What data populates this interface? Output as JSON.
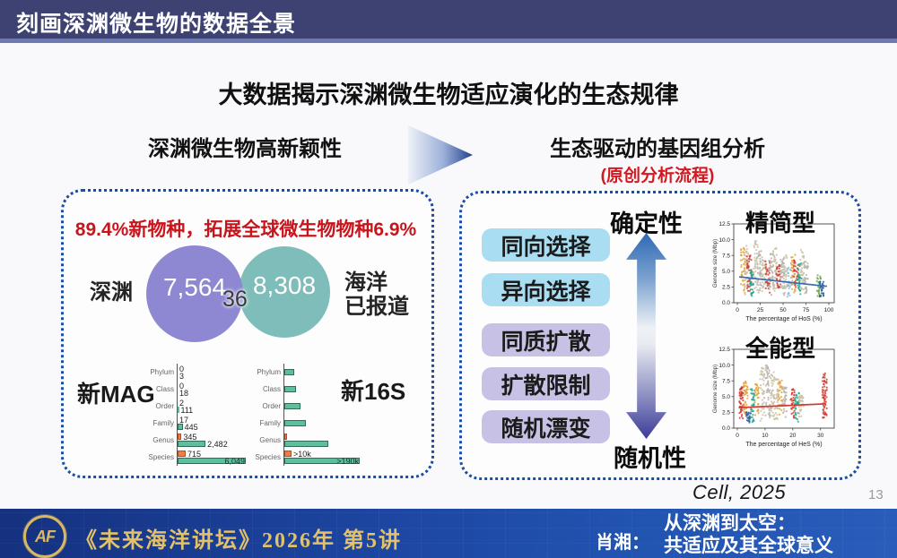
{
  "header": {
    "title": "刻画深渊微生物的数据全景"
  },
  "main_title": "大数据揭示深渊微生物适应演化的生态规律",
  "left_section": {
    "heading": "深渊微生物高新颖性",
    "highlight": "89.4%新物种，拓展全球微生物物种6.9%"
  },
  "right_section": {
    "heading": "生态驱动的基因组分析",
    "subheading": "(原创分析流程)",
    "determinism_label": "确定性",
    "stochasticity_label": "随机性",
    "selection_boxes": [
      "同向选择",
      "异向选择"
    ],
    "neutral_boxes": [
      "同质扩散",
      "扩散限制",
      "随机漂变"
    ]
  },
  "citation": "Cell, 2025",
  "page_number": "13",
  "footer": {
    "logo_text": "AF",
    "series": "《未来海洋讲坛》2026年 第5讲",
    "speaker": "肖湘：",
    "talk_title_line1": "从深渊到太空：",
    "talk_title_line2": "共适应及其全球意义"
  },
  "chart_data": {
    "venn": {
      "type": "venn",
      "left_label": "深渊",
      "left_value": "7,564",
      "overlap_value": "36",
      "right_value": "8,308",
      "right_label_line1": "海洋",
      "right_label_line2": "已报道",
      "left_color": "#8e88d2",
      "right_color": "#7fbdba"
    },
    "new_mag_bar": {
      "type": "bar",
      "title": "新MAG",
      "orientation": "horizontal",
      "max_value": 6049,
      "categories": [
        "Phylum",
        "Class",
        "Order",
        "Family",
        "Genus",
        "Species"
      ],
      "series": [
        {
          "name": "orange",
          "values": [
            0,
            0,
            2,
            17,
            345,
            715
          ],
          "labels": [
            "0",
            "0",
            "2",
            "17",
            "345",
            "715"
          ]
        },
        {
          "name": "green",
          "values": [
            3,
            18,
            111,
            445,
            2482,
            6049
          ],
          "labels": [
            "3",
            "18",
            "111",
            "445",
            "2,482",
            "6,049"
          ]
        }
      ]
    },
    "new_16s_bar": {
      "type": "bar",
      "title": "新16S",
      "orientation": "horizontal",
      "categories": [
        "Phylum",
        "Class",
        "Order",
        "Family",
        "Genus",
        "Species"
      ],
      "rows": [
        {
          "taxon": "Phylum",
          "bars": [
            {
              "color": "green",
              "frac": 0.13
            }
          ]
        },
        {
          "taxon": "Class",
          "bars": [
            {
              "color": "green",
              "frac": 0.155
            }
          ]
        },
        {
          "taxon": "Order",
          "bars": [
            {
              "color": "green",
              "frac": 0.215
            }
          ]
        },
        {
          "taxon": "Family",
          "bars": [
            {
              "color": "green",
              "frac": 0.285
            }
          ]
        },
        {
          "taxon": "Genus",
          "bars": [
            {
              "color": "orange",
              "frac": 0.03
            },
            {
              "color": "green",
              "frac": 0.58
            }
          ]
        },
        {
          "taxon": "Species",
          "bars": [
            {
              "color": "orange",
              "frac": 0.095,
              "label": ">10k"
            },
            {
              "color": "green",
              "frac": 1.0,
              "label": ">190k",
              "label_inside": true
            }
          ]
        }
      ]
    },
    "genome_scatter_top": {
      "type": "scatter",
      "title": "精简型",
      "xlabel": "The percentage of HoS (%)",
      "ylabel": "Genome size (Mbp)",
      "xticks": [
        0,
        25,
        50,
        75,
        100
      ],
      "yticks": [
        "0.0",
        "2.5",
        "5.0",
        "7.5",
        "10.0",
        "12.5"
      ],
      "xmax": 100,
      "ymax": 12.5,
      "trend": {
        "x0": 2,
        "y0": 4.1,
        "x1": 98,
        "y1": 2.6,
        "color": "#3a6db0"
      },
      "clusters": [
        [
          6,
          "#e2a23b",
          1.5,
          8.7,
          40
        ],
        [
          10,
          "#c9bfa4",
          1.2,
          9.3,
          40
        ],
        [
          13,
          "#d23b2f",
          1.8,
          7.6,
          36
        ],
        [
          16,
          "#1fa587",
          0.9,
          5.2,
          30
        ],
        [
          20,
          "#c9bfa4",
          1.5,
          9.8,
          40
        ],
        [
          24,
          "#b5b1aa",
          1.2,
          8.2,
          38
        ],
        [
          29,
          "#c9bfa4",
          1.5,
          7.3,
          34
        ],
        [
          33,
          "#d23b2f",
          1.4,
          6.6,
          30
        ],
        [
          37,
          "#b5b1aa",
          1.0,
          7.8,
          40
        ],
        [
          41,
          "#c9bfa4",
          1.6,
          8.8,
          36
        ],
        [
          45,
          "#d23b2f",
          1.9,
          6.2,
          30
        ],
        [
          49,
          "#b5b1aa",
          1.2,
          7.0,
          36
        ],
        [
          53,
          "#c9bfa4",
          1.5,
          7.6,
          34
        ],
        [
          57,
          "#86b9dd",
          0.7,
          5.6,
          26
        ],
        [
          61,
          "#e2a23b",
          1.6,
          7.8,
          32
        ],
        [
          64,
          "#d23b2f",
          2.0,
          6.8,
          28
        ],
        [
          68,
          "#1fa587",
          1.0,
          6.4,
          30
        ],
        [
          71,
          "#c9bfa4",
          1.8,
          8.4,
          34
        ],
        [
          75,
          "#b5b1aa",
          1.3,
          7.0,
          32
        ],
        [
          89,
          "#69a744",
          1.0,
          4.6,
          24
        ],
        [
          92,
          "#2a5d9c",
          0.6,
          3.4,
          26
        ]
      ]
    },
    "genome_scatter_bottom": {
      "type": "scatter",
      "title": "全能型",
      "xlabel": "The percentage of HeS (%)",
      "ylabel": "Genome size (Mbp)",
      "xticks": [
        0,
        10,
        20,
        30
      ],
      "yticks": [
        "0.0",
        "2.5",
        "5.0",
        "7.5",
        "10.0",
        "12.5"
      ],
      "xmax": 33,
      "ymax": 12.5,
      "trend": {
        "x0": 0.5,
        "y0": 3.25,
        "x1": 32,
        "y1": 3.85,
        "color": "#d23b2f"
      },
      "clusters": [
        [
          1.5,
          "#d23b2f",
          1.4,
          6.6,
          50
        ],
        [
          3,
          "#e2a23b",
          1.7,
          7.4,
          40
        ],
        [
          4,
          "#2a5d9c",
          0.6,
          2.6,
          24
        ],
        [
          5.5,
          "#1fa587",
          0.9,
          6.2,
          32
        ],
        [
          7,
          "#e2a23b",
          2.0,
          7.0,
          30
        ],
        [
          9,
          "#c9bfa4",
          1.0,
          9.6,
          44
        ],
        [
          11,
          "#b5b1aa",
          1.4,
          10.2,
          44
        ],
        [
          12.5,
          "#c9bfa4",
          1.6,
          9.0,
          40
        ],
        [
          14,
          "#c9bfa4",
          1.2,
          8.0,
          36
        ],
        [
          15.5,
          "#e2a23b",
          2.0,
          7.6,
          30
        ],
        [
          17,
          "#b5b1aa",
          1.5,
          6.5,
          32
        ],
        [
          20,
          "#d23b2f",
          1.6,
          6.2,
          34
        ],
        [
          21.5,
          "#1fa587",
          0.9,
          5.6,
          30
        ],
        [
          23,
          "#c9bfa4",
          1.4,
          5.2,
          28
        ],
        [
          31.5,
          "#d23b2f",
          1.4,
          8.7,
          60
        ]
      ]
    }
  }
}
